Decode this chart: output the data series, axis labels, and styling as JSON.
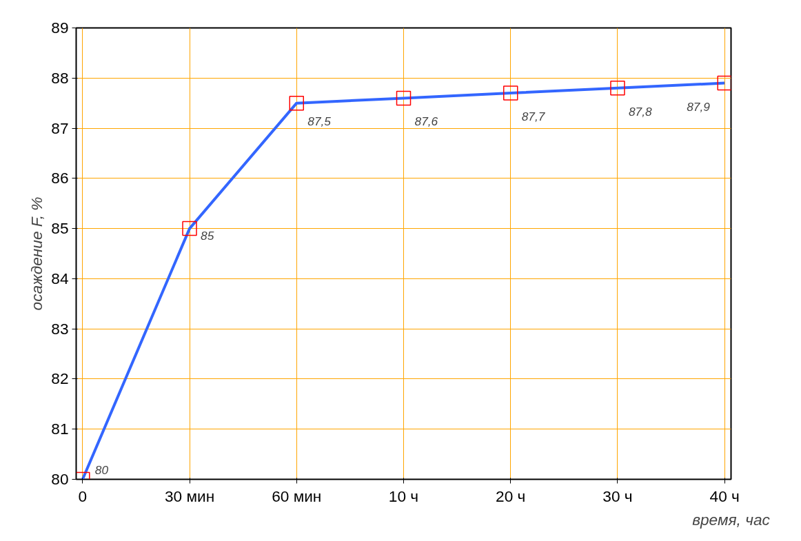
{
  "chart_data": {
    "type": "line",
    "xlabel": "время, час",
    "ylabel": "осаждение F, %",
    "categories": [
      "0",
      "30 мин",
      "60 мин",
      "10 ч",
      "20 ч",
      "30 ч",
      "40 ч"
    ],
    "series": [
      {
        "color": "#3366ff",
        "values": [
          80,
          85,
          87.5,
          87.6,
          87.7,
          87.8,
          87.9
        ],
        "value_labels": [
          "80",
          "85",
          "87,5",
          "87,6",
          "87,7",
          "87,8",
          "87,9"
        ],
        "colors": [
          "#ff0000",
          "#ff0000",
          "#ff0000",
          "#ff0000",
          "#ff0000",
          "#ff0000",
          "#ff0000"
        ]
      }
    ],
    "ylim": [
      80,
      89
    ],
    "yticks": [
      80,
      81,
      82,
      83,
      84,
      85,
      86,
      87,
      88,
      89
    ],
    "grid": true,
    "marker": "square",
    "line_style": "solid"
  }
}
